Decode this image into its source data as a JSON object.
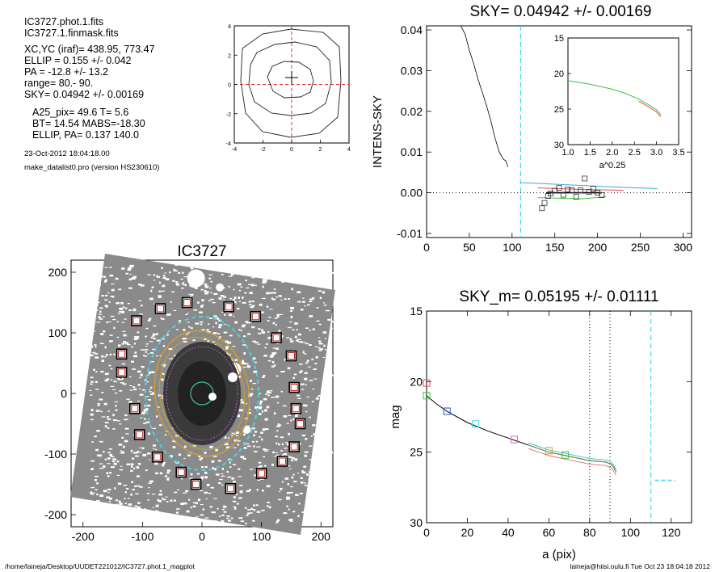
{
  "info": {
    "lines_a": [
      "IC3727.phot.1.fits",
      "IC3727.1.finmask.fits"
    ],
    "lines_b": [
      "XC,YC (iraf)=    438.95, 773.47",
      "ELLIP = 0.155 +/- 0.042",
      "PA    = -12.8 +/-  13.2",
      "range=   80.-   90.",
      "SKY= 0.04942 +/- 0.00169"
    ],
    "lines_c": [
      "A25_pix= 49.6   T= 5.6",
      "BT=  14.54   MABS=-18.30",
      "ELLIP, PA= 0.137   140.0"
    ],
    "date": "23-Oct-2012 18:04:18.00",
    "program": "make_datalist0.pro (version HS230610)"
  },
  "footer": {
    "left": "/home/laineja/Desktop/UUDET221012/IC3727.phot.1_magplot",
    "right": "laineja@hiisi.oulu.fi  Tue Oct 23 18:04:18 2012"
  },
  "chart_data": [
    {
      "id": "contour",
      "type": "contour",
      "xticks": [
        "-4",
        "-2",
        "0",
        "2",
        "4"
      ],
      "yticks": [
        "4",
        "2",
        "0",
        "-2",
        "-4"
      ],
      "xlim": [
        -4,
        4
      ],
      "ylim": [
        -4,
        4
      ]
    },
    {
      "id": "sky",
      "type": "line",
      "title": "SKY= 0.04942 +/- 0.00169",
      "ylabel": "INTENS-SKY",
      "xlim": [
        0,
        310
      ],
      "ylim": [
        -0.011,
        0.041
      ],
      "xticks": [
        "0",
        "50",
        "100",
        "150",
        "200",
        "250",
        "300"
      ],
      "yticks": [
        "0.04",
        "0.03",
        "0.02",
        "0.01",
        "0.00",
        "-0.01"
      ],
      "sky_radius": 110,
      "profile": [
        [
          40,
          0.0415
        ],
        [
          45,
          0.039
        ],
        [
          50,
          0.035
        ],
        [
          55,
          0.0318
        ],
        [
          60,
          0.028
        ],
        [
          65,
          0.0248
        ],
        [
          70,
          0.0215
        ],
        [
          75,
          0.0178
        ],
        [
          80,
          0.0135
        ],
        [
          85,
          0.01
        ],
        [
          90,
          0.0082
        ],
        [
          93,
          0.0078
        ],
        [
          95,
          0.0064
        ]
      ],
      "points": [
        [
          135,
          -0.0038
        ],
        [
          138,
          -0.0025
        ],
        [
          142,
          -0.0008
        ],
        [
          145,
          -0.0002
        ],
        [
          150,
          0.0005
        ],
        [
          155,
          0.0012
        ],
        [
          160,
          -0.0005
        ],
        [
          165,
          0.0008
        ],
        [
          170,
          0.0006
        ],
        [
          175,
          -0.001
        ],
        [
          180,
          0.0006
        ],
        [
          185,
          0.0035
        ],
        [
          190,
          0.0002
        ],
        [
          195,
          0.001
        ],
        [
          200,
          0.0
        ],
        [
          205,
          -0.0006
        ]
      ],
      "inset": {
        "xlabel": "a^0.25",
        "xlim": [
          1.0,
          3.5
        ],
        "ylim": [
          15,
          30
        ],
        "xticks": [
          "1.0",
          "1.5",
          "2.0",
          "2.5",
          "3.0",
          "3.5"
        ],
        "yticks": [
          "15",
          "20",
          "25",
          "30"
        ],
        "curve": [
          [
            1.0,
            21.0
          ],
          [
            1.5,
            21.5
          ],
          [
            2.0,
            22.2
          ],
          [
            2.3,
            22.8
          ],
          [
            2.6,
            23.6
          ],
          [
            2.8,
            24.3
          ],
          [
            3.0,
            25.1
          ],
          [
            3.1,
            25.8
          ]
        ]
      }
    },
    {
      "id": "image",
      "type": "image",
      "title": "IC3727",
      "xlim": [
        -220,
        220
      ],
      "ylim": [
        -220,
        220
      ],
      "xticks": [
        "-200",
        "-100",
        "0",
        "100",
        "200"
      ],
      "yticks": [
        "200",
        "100",
        "0",
        "-100",
        "-200"
      ],
      "boxes": [
        [
          -70,
          140
        ],
        [
          -25,
          150
        ],
        [
          45,
          143
        ],
        [
          90,
          127
        ],
        [
          -110,
          120
        ],
        [
          125,
          92
        ],
        [
          -135,
          65
        ],
        [
          150,
          62
        ],
        [
          -135,
          35
        ],
        [
          155,
          10
        ],
        [
          -113,
          -25
        ],
        [
          158,
          -25
        ],
        [
          -105,
          -68
        ],
        [
          165,
          -50
        ],
        [
          155,
          -88
        ],
        [
          -75,
          -105
        ],
        [
          135,
          -112
        ],
        [
          -35,
          -130
        ],
        [
          100,
          -132
        ],
        [
          -10,
          -150
        ],
        [
          48,
          -157
        ]
      ]
    },
    {
      "id": "mag",
      "type": "line",
      "title": "SKY_m=  0.05195 +/- 0.01111",
      "xlabel": "a (pix)",
      "ylabel": "mag",
      "xlim": [
        0,
        130
      ],
      "ylim": [
        15,
        30
      ],
      "xticks": [
        "0",
        "20",
        "40",
        "60",
        "80",
        "100",
        "120"
      ],
      "yticks": [
        "15",
        "20",
        "25",
        "30"
      ],
      "range_lines": [
        80,
        90
      ],
      "sky_radius": 110,
      "profile": [
        [
          0,
          21.0
        ],
        [
          5,
          21.6
        ],
        [
          10,
          22.1
        ],
        [
          20,
          22.9
        ],
        [
          30,
          23.5
        ],
        [
          40,
          24.0
        ],
        [
          50,
          24.5
        ],
        [
          60,
          25.0
        ],
        [
          70,
          25.3
        ],
        [
          80,
          25.6
        ],
        [
          88,
          25.7
        ],
        [
          91,
          25.9
        ],
        [
          93,
          26.4
        ]
      ]
    }
  ]
}
